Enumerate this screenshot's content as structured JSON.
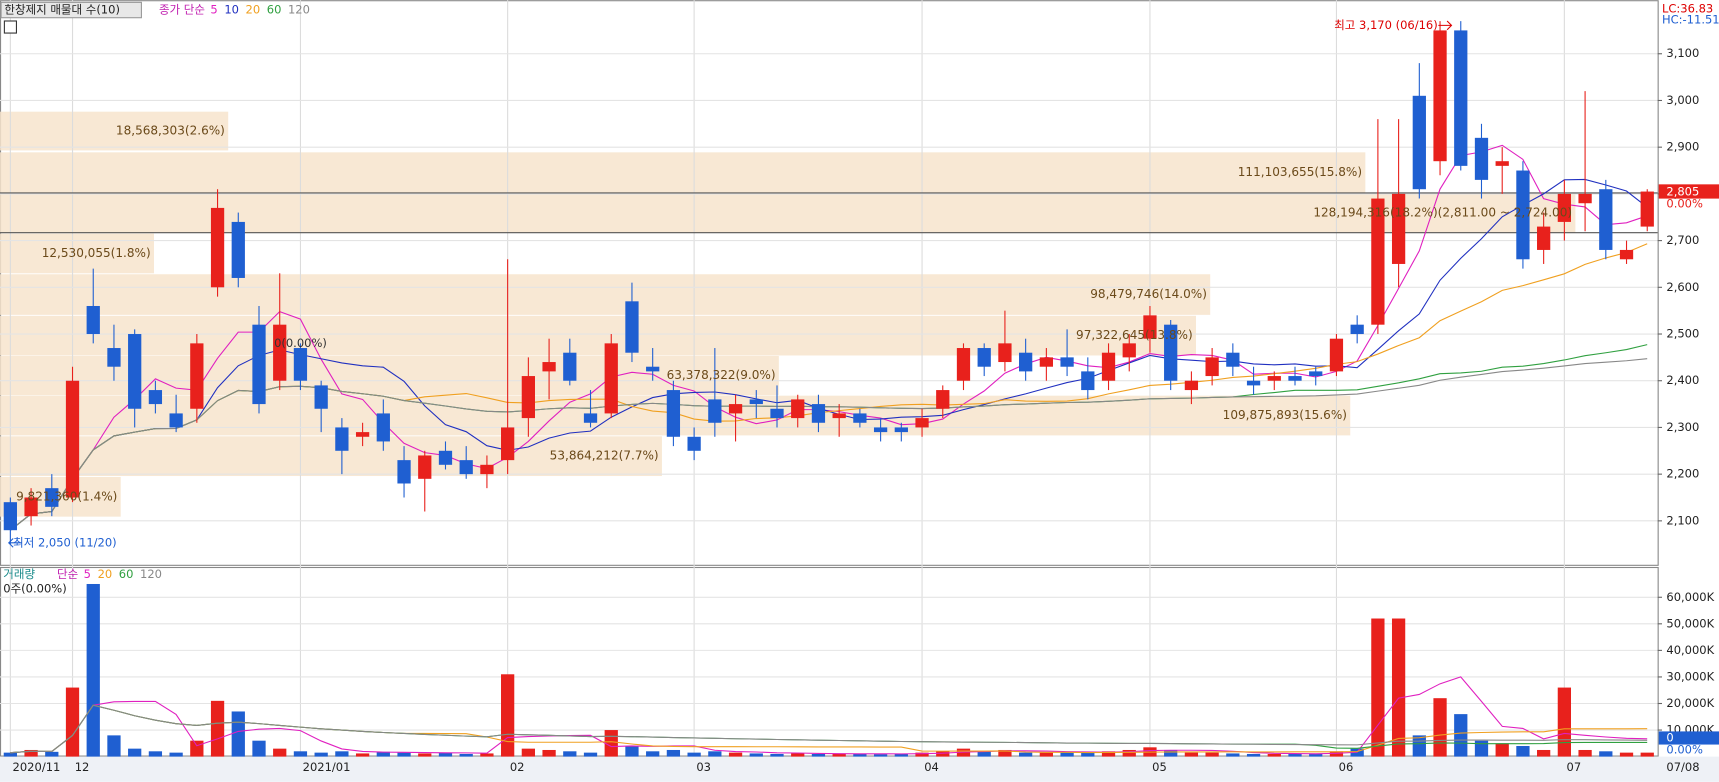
{
  "chart_data": [
    {
      "type": "candlestick",
      "legend_title": "한창제지 매물대 수(10)",
      "ma_label": "종가 단순",
      "ma_periods": [
        5,
        10,
        20,
        60,
        120
      ],
      "ma_colors": [
        "#e020c0",
        "#2030c0",
        "#f0a020",
        "#30a040",
        "#888888"
      ],
      "up_color": "#e8211c",
      "down_color": "#1f5fd1",
      "categories": [
        "2020/11",
        null,
        null,
        "12",
        null,
        null,
        null,
        null,
        null,
        null,
        null,
        null,
        null,
        null,
        "2021/01",
        null,
        null,
        null,
        null,
        null,
        null,
        null,
        null,
        null,
        "02",
        null,
        null,
        null,
        null,
        null,
        null,
        null,
        null,
        "03",
        null,
        null,
        null,
        null,
        null,
        null,
        null,
        null,
        null,
        null,
        "04",
        null,
        null,
        null,
        null,
        null,
        null,
        null,
        null,
        null,
        null,
        "05",
        null,
        null,
        null,
        null,
        null,
        null,
        null,
        null,
        "06",
        null,
        null,
        null,
        null,
        null,
        null,
        null,
        null,
        null,
        null,
        "07",
        null,
        null,
        null,
        null
      ],
      "open": [
        2140,
        2110,
        2170,
        2150,
        2560,
        2470,
        2500,
        2380,
        2330,
        2340,
        2600,
        2740,
        2520,
        2400,
        2470,
        2390,
        2300,
        2280,
        2330,
        2230,
        2190,
        2250,
        2230,
        2200,
        2230,
        2320,
        2420,
        2460,
        2330,
        2330,
        2570,
        2430,
        2380,
        2280,
        2360,
        2330,
        2360,
        2340,
        2320,
        2350,
        2320,
        2330,
        2300,
        2300,
        2300,
        2340,
        2400,
        2470,
        2440,
        2460,
        2430,
        2450,
        2420,
        2400,
        2450,
        2490,
        2520,
        2380,
        2410,
        2460,
        2400,
        2400,
        2410,
        2420,
        2420,
        2520,
        2520,
        2650,
        3010,
        2870,
        3150,
        2920,
        2860,
        2850,
        2680,
        2740,
        2780,
        2810,
        2660,
        2730
      ],
      "high": [
        2150,
        2170,
        2200,
        2430,
        2640,
        2520,
        2510,
        2400,
        2370,
        2500,
        2810,
        2760,
        2560,
        2630,
        2480,
        2400,
        2320,
        2310,
        2360,
        2260,
        2250,
        2270,
        2260,
        2240,
        2660,
        2450,
        2490,
        2490,
        2380,
        2500,
        2610,
        2470,
        2400,
        2300,
        2470,
        2370,
        2380,
        2390,
        2370,
        2370,
        2350,
        2340,
        2320,
        2310,
        2340,
        2390,
        2480,
        2480,
        2550,
        2490,
        2470,
        2510,
        2450,
        2480,
        2500,
        2560,
        2530,
        2420,
        2470,
        2480,
        2430,
        2420,
        2430,
        2430,
        2500,
        2540,
        2960,
        2960,
        3080,
        3170,
        3170,
        2950,
        2900,
        2870,
        2760,
        2830,
        3020,
        2830,
        2700,
        2810
      ],
      "low": [
        2050,
        2090,
        2110,
        2140,
        2480,
        2400,
        2300,
        2330,
        2290,
        2310,
        2580,
        2600,
        2330,
        2380,
        2380,
        2290,
        2200,
        2260,
        2250,
        2150,
        2120,
        2210,
        2190,
        2170,
        2200,
        2280,
        2360,
        2390,
        2300,
        2320,
        2440,
        2400,
        2260,
        2230,
        2280,
        2270,
        2320,
        2300,
        2300,
        2290,
        2280,
        2300,
        2270,
        2270,
        2280,
        2320,
        2380,
        2410,
        2420,
        2400,
        2400,
        2410,
        2360,
        2380,
        2420,
        2460,
        2380,
        2350,
        2390,
        2410,
        2370,
        2380,
        2390,
        2390,
        2410,
        2480,
        2500,
        2600,
        2790,
        2840,
        2850,
        2790,
        2800,
        2640,
        2650,
        2700,
        2720,
        2660,
        2650,
        2720
      ],
      "close": [
        2080,
        2150,
        2130,
        2400,
        2500,
        2430,
        2340,
        2350,
        2300,
        2480,
        2770,
        2620,
        2350,
        2520,
        2400,
        2340,
        2250,
        2290,
        2270,
        2180,
        2240,
        2220,
        2200,
        2220,
        2300,
        2410,
        2440,
        2400,
        2310,
        2480,
        2460,
        2420,
        2280,
        2250,
        2310,
        2350,
        2350,
        2320,
        2360,
        2310,
        2330,
        2310,
        2290,
        2290,
        2320,
        2380,
        2470,
        2430,
        2480,
        2420,
        2450,
        2430,
        2380,
        2460,
        2480,
        2540,
        2400,
        2400,
        2450,
        2430,
        2390,
        2410,
        2400,
        2410,
        2490,
        2500,
        2790,
        2800,
        2810,
        3150,
        2860,
        2830,
        2870,
        2660,
        2730,
        2800,
        2800,
        2680,
        2680,
        2805
      ],
      "ylim": [
        2006,
        3203
      ],
      "yticks": [
        {
          "value": 2100,
          "label": "2,100"
        },
        {
          "value": 2200,
          "label": "2,200"
        },
        {
          "value": 2300,
          "label": "2,300"
        },
        {
          "value": 2400,
          "label": "2,400"
        },
        {
          "value": 2500,
          "label": "2,500"
        },
        {
          "value": 2600,
          "label": "2,600"
        },
        {
          "value": 2700,
          "label": "2,700"
        },
        {
          "value": 2800,
          "label": "2,800"
        },
        {
          "value": 2900,
          "label": "2,900"
        },
        {
          "value": 3000,
          "label": "3,000"
        },
        {
          "value": 3100,
          "label": "3,100"
        }
      ],
      "volume_profile": [
        {
          "low": 2893,
          "high": 2976,
          "volume": 18568303,
          "label": "18,568,303(2.6%)"
        },
        {
          "low": 2802,
          "high": 2889,
          "volume": 111103655,
          "label": "111,103,655(15.8%)"
        },
        {
          "low": 2717,
          "high": 2802,
          "volume": 128194316,
          "label": "128,194,316(18.2%)(2,811.00 ~ 2,724.00)"
        },
        {
          "low": 2630,
          "high": 2715,
          "volume": 12530055,
          "label": "12,530,055(1.8%)"
        },
        {
          "low": 2541,
          "high": 2628,
          "volume": 98479746,
          "label": "98,479,746(14.0%)"
        },
        {
          "low": 2454,
          "high": 2539,
          "volume": 97322645,
          "label": "97,322,645(13.8%)"
        },
        {
          "low": 2369,
          "high": 2453,
          "volume": 63378322,
          "label": "63,378,322(9.0%)"
        },
        {
          "low": 2283,
          "high": 2368,
          "volume": 109875893,
          "label": "109,875,893(15.6%)"
        },
        {
          "low": 2196,
          "high": 2281,
          "volume": 53864212,
          "label": "53,864,212(7.7%)"
        },
        {
          "low": 2109,
          "high": 2194,
          "volume": 9821360,
          "label": "9,821,360(1.4%)"
        }
      ],
      "zero_band_label": "0(0.00%)",
      "max_label": "최고 3,170 (06/16)",
      "min_label": "최저 2,050 (11/20)",
      "lc": "LC:36.83",
      "hc": "HC:-11.51",
      "last_price": "2,805",
      "last_change": "0.00%",
      "last_date": "07/08"
    },
    {
      "type": "bar",
      "legend_title": "거래량",
      "ma_label": "단순",
      "ma_periods": [
        5,
        20,
        60,
        120
      ],
      "ma_colors": [
        "#e020c0",
        "#f0a020",
        "#30a040",
        "#888888"
      ],
      "subtitle": "0주(0.00%)",
      "values": [
        1500,
        2500,
        1800,
        26000,
        65000,
        8000,
        3000,
        2000,
        1500,
        6000,
        21000,
        17000,
        6000,
        3000,
        2000,
        1500,
        2000,
        1200,
        1800,
        1500,
        1200,
        1500,
        1000,
        1200,
        31000,
        3000,
        2500,
        2000,
        1500,
        10000,
        4000,
        2000,
        2500,
        1500,
        2000,
        1500,
        1200,
        1000,
        1200,
        1000,
        1200,
        1000,
        900,
        1000,
        1500,
        2000,
        3000,
        2000,
        2500,
        1500,
        1500,
        1800,
        1500,
        2000,
        2500,
        3500,
        2500,
        1500,
        1500,
        1200,
        1000,
        1000,
        1000,
        1200,
        2000,
        3000,
        52000,
        52000,
        8000,
        22000,
        16000,
        6000,
        5000,
        4000,
        2500,
        26000,
        2500,
        2000,
        1500,
        1500
      ],
      "ylim": [
        0,
        71000
      ],
      "yticks": [
        {
          "value": 10000,
          "label": "10,000K"
        },
        {
          "value": 20000,
          "label": "20,000K"
        },
        {
          "value": 30000,
          "label": "30,000K"
        },
        {
          "value": 40000,
          "label": "40,000K"
        },
        {
          "value": 50000,
          "label": "50,000K"
        },
        {
          "value": 60000,
          "label": "60,000K"
        }
      ],
      "last_value": "0",
      "last_change": "0.00%"
    }
  ]
}
